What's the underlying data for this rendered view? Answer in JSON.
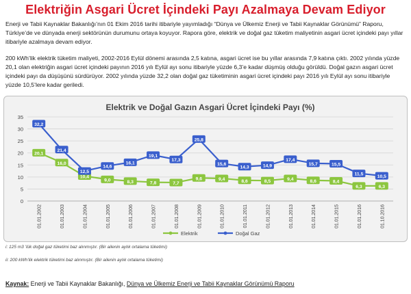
{
  "page": {
    "title": "Elektriğin Asgari Ücret İçindeki Payı Azalmaya Devam Ediyor",
    "para1": "Enerji ve Tabii Kaynaklar Bakanlığı’nın 01 Ekim 2016 tarihi itibariyle yayımladığı “Dünya ve Ülkemiz Enerji ve Tabii Kaynaklar Görünümü” Raporu, Türkiye’de ve dünyada enerji sektörünün durumunu ortaya koyuyor. Rapora göre, elektrik ve doğal gaz tüketim maliyetinin asgari ücret içindeki payı yıllar itibariyle azalmaya devam ediyor.",
    "para2": "200 kWh’lik elektrik tüketim maliyeti, 2002-2016 Eylül dönemi arasında 2,5 katına, asgari ücret ise bu yıllar arasında 7,9 katına çıktı. 2002 yılında yüzde 20,1 olan elektriğin asgari ücret içindeki payının 2016 yılı Eylül ayı sonu itibariyle yüzde 6,3’e kadar düşmüş olduğu görüldü. Doğal gazın asgari ücret içindeki payı da düşüşünü sürdürüyor. 2002 yılında yüzde 32,2 olan doğal gaz tüketiminin asgari ücret içindeki payı 2016 yılı Eylül ayı sonu itibariyle yüzde 10,5’lere kadar geriledi.",
    "note1": "i:   125 m3 ’lük doğal gaz tüketimi baz alınmıştır. (Bir ailenin aylık ortalama tüketimi)",
    "note2": "ii: 200 kWh’lik elektrik tüketimi baz alınmıştır. (Bir ailenin aylık ortalama tüketimi)",
    "source_label": "Kaynak:",
    "source_text": " Enerji ve Tabii Kaynaklar Bakanlığı, ",
    "source_report": "Dünya ve Ülkemiz Enerji ve Tabii Kaynaklar Görünümü Raporu"
  },
  "chart_data": {
    "type": "line",
    "title": "Elektrik ve Doğal Gazın Asgari Ücret İçindeki Payı (%)",
    "x": [
      "01.01.2002",
      "01.01.2003",
      "01.01.2004",
      "01.01.2005",
      "01.01.2006",
      "01.01.2007",
      "01.01.2008",
      "01.01.2009",
      "01.01.2010",
      "01.01.2011",
      "01.01.2012",
      "01.01.2013",
      "01.01.2014",
      "01.01.2015",
      "01.01.2016",
      "01.10.2016"
    ],
    "ylim": [
      0,
      35
    ],
    "yticks": [
      0,
      5,
      10,
      15,
      20,
      25,
      30,
      35
    ],
    "grid": true,
    "legend": "bottom",
    "series": [
      {
        "name": "Elektrik",
        "color": "#8cc63f",
        "values": [
          20.1,
          16.0,
          10.4,
          9.0,
          8.3,
          7.8,
          7.7,
          9.6,
          9.4,
          8.6,
          8.5,
          9.4,
          8.6,
          8.4,
          6.3,
          6.3
        ],
        "labels": [
          "20,1",
          "16,0",
          "10,4",
          "9,0",
          "8,3",
          "7,8",
          "7,7",
          "9,6",
          "9,4",
          "8,6",
          "8,5",
          "9,4",
          "8,6",
          "8,4",
          "6,3",
          "6,3"
        ]
      },
      {
        "name": "Doğal Gaz",
        "color": "#3a5fcd",
        "values": [
          32.2,
          21.4,
          12.5,
          14.6,
          16.1,
          19.1,
          17.3,
          25.8,
          15.6,
          14.3,
          14.9,
          17.4,
          15.7,
          15.5,
          11.5,
          10.5
        ],
        "labels": [
          "32,2",
          "21,4",
          "12,5",
          "14,6",
          "16,1",
          "19,1",
          "17,3",
          "25,8",
          "15,6",
          "14,3",
          "14,9",
          "17,4",
          "15,7",
          "15,5",
          "11,5",
          "10,5"
        ]
      }
    ]
  }
}
